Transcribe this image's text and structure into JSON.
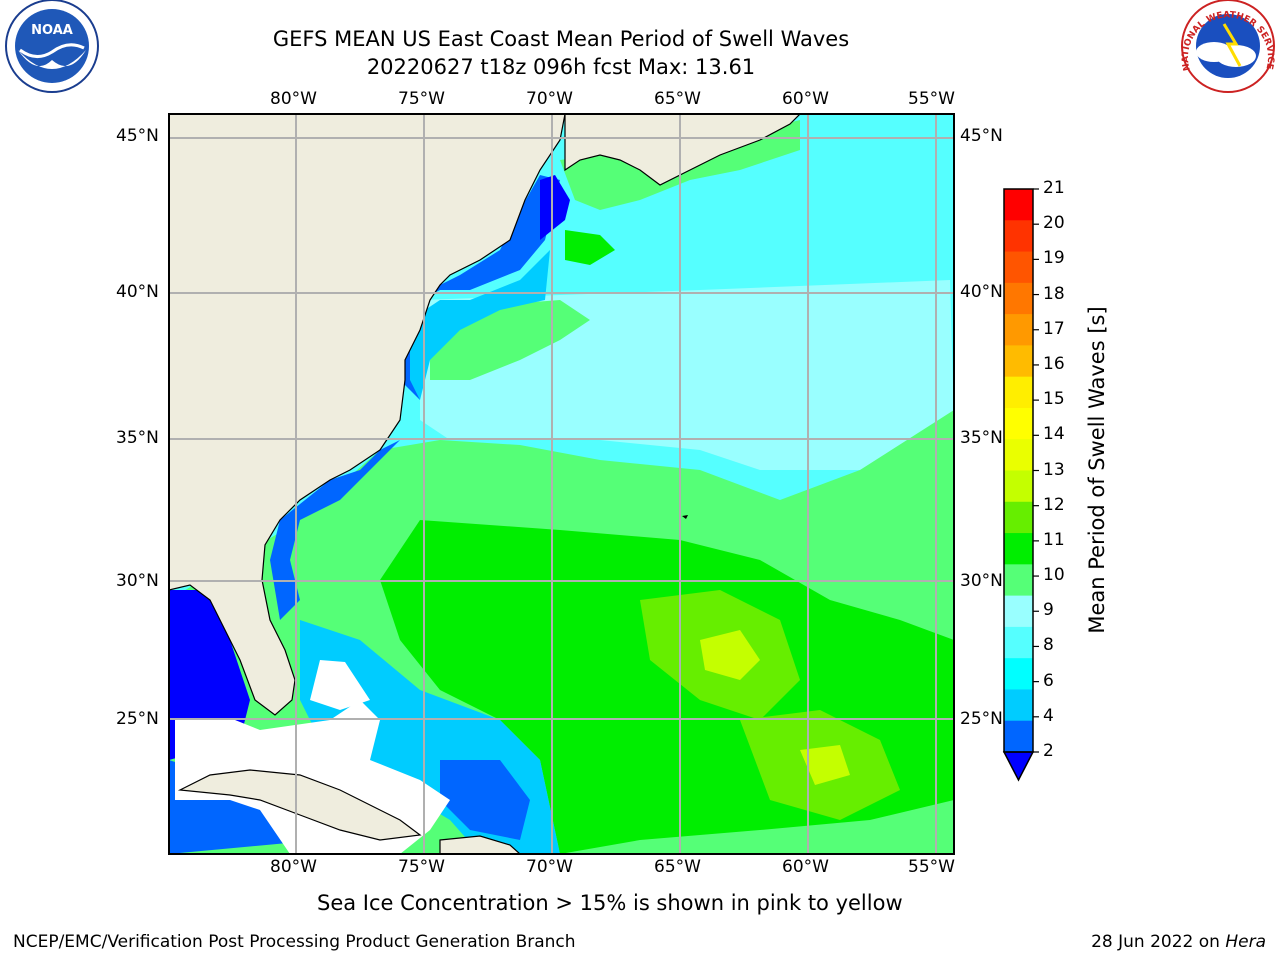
{
  "header": {
    "title_line1": "GEFS MEAN US East Coast Mean Period of Swell Waves",
    "title_line2": "20220627 t18z 096h fcst   Max: 13.61"
  },
  "logos": {
    "left_icon": "noaa-logo-icon",
    "left_text": "NOAA",
    "right_icon": "nws-logo-icon",
    "right_text": "NATIONAL WEATHER SERVICE"
  },
  "map": {
    "lon_ticks": [
      "80°W",
      "75°W",
      "70°W",
      "65°W",
      "60°W",
      "55°W"
    ],
    "lat_ticks": [
      "45°N",
      "40°N",
      "35°N",
      "30°N",
      "25°N"
    ],
    "extent": {
      "lon_min": -85,
      "lon_max": -54.5,
      "lat_min": 20.4,
      "lat_max": 45.8
    },
    "land_color": "#efedde",
    "grid_color": "#b0b0b0"
  },
  "colorbar": {
    "label": "Mean Period of Swell Waves [s]",
    "ticks": [
      "21",
      "20",
      "19",
      "18",
      "17",
      "16",
      "15",
      "14",
      "13",
      "12",
      "11",
      "10",
      "9",
      "8",
      "6",
      "4",
      "2"
    ],
    "colors": [
      "#ff0000",
      "#ff3300",
      "#ff5500",
      "#ff7700",
      "#ff9900",
      "#ffbb00",
      "#ffee00",
      "#ffff00",
      "#eaff00",
      "#c4ff00",
      "#66ee00",
      "#00ee00",
      "#55ff77",
      "#99ffff",
      "#55ffff",
      "#00ffff",
      "#00ccff",
      "#0066ff",
      "#0000ff"
    ]
  },
  "caption": "Sea Ice Concentration > 15% is shown in pink to yellow",
  "footer": {
    "left": "NCEP/EMC/Verification Post Processing Product Generation Branch",
    "right_date": "28 Jun 2022 on ",
    "right_host": "Hera"
  }
}
